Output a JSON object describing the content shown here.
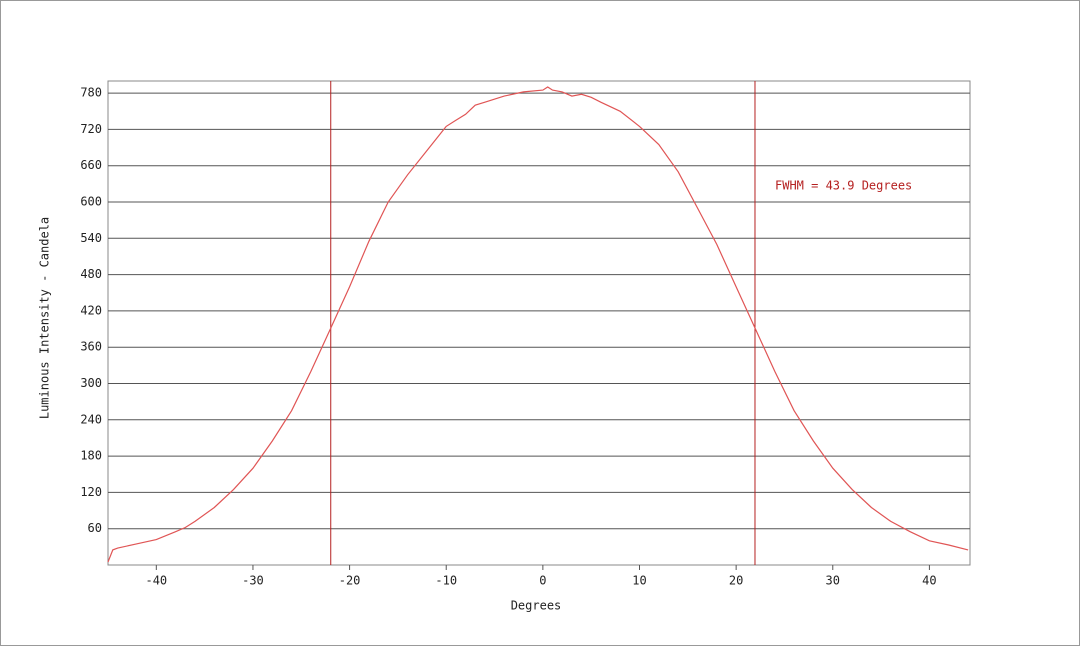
{
  "chart_data": {
    "type": "line",
    "x_label": "Degrees",
    "y_label": "Luminous Intensity - Candela",
    "annotation": "FWHM = 43.9 Degrees",
    "x": [
      -45,
      -44.5,
      -44,
      -42,
      -40,
      -38,
      -37,
      -36,
      -34,
      -32,
      -30,
      -28,
      -26,
      -24,
      -22,
      -20,
      -18,
      -16,
      -14,
      -12,
      -10,
      -9,
      -8,
      -7,
      -6,
      -4,
      -2,
      0,
      0.5,
      1,
      2,
      3,
      4,
      5,
      6,
      8,
      10,
      12,
      14,
      16,
      18,
      20,
      22,
      24,
      26,
      28,
      30,
      32,
      34,
      36,
      38,
      40,
      42,
      44
    ],
    "values": [
      5,
      25,
      28,
      35,
      42,
      55,
      62,
      72,
      95,
      125,
      160,
      205,
      255,
      320,
      390,
      460,
      535,
      600,
      645,
      685,
      725,
      735,
      745,
      760,
      765,
      775,
      782,
      785,
      790,
      785,
      782,
      775,
      778,
      773,
      765,
      750,
      725,
      695,
      650,
      590,
      530,
      460,
      390,
      320,
      255,
      205,
      160,
      125,
      95,
      72,
      55,
      40,
      33,
      25
    ],
    "color": "#e05555",
    "marker_lines": [
      -21.95,
      21.95
    ],
    "marker_color": "#b52020",
    "xlim": [
      -45,
      44.2
    ],
    "ylim": [
      0,
      800
    ],
    "xticks": [
      -40,
      -30,
      -20,
      -10,
      0,
      10,
      20,
      30,
      40
    ],
    "yticks": [
      60,
      120,
      180,
      240,
      300,
      360,
      420,
      480,
      540,
      600,
      660,
      720,
      780
    ],
    "grid": true
  }
}
